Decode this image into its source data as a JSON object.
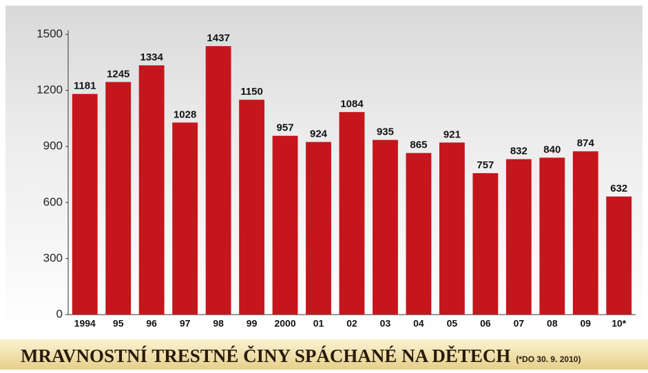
{
  "chart_data": {
    "type": "bar",
    "title": "MRAVNOSTNÍ TRESTNÉ ČINY SPÁCHANÉ NA DĚTECH",
    "note": "(*DO 30. 9. 2010)",
    "categories": [
      "1994",
      "95",
      "96",
      "97",
      "98",
      "99",
      "2000",
      "01",
      "02",
      "03",
      "04",
      "05",
      "06",
      "07",
      "08",
      "09",
      "10*"
    ],
    "values": [
      1181,
      1245,
      1334,
      1028,
      1437,
      1150,
      957,
      924,
      1084,
      935,
      865,
      921,
      757,
      832,
      840,
      874,
      632
    ],
    "color": "#c4161c",
    "ylim": [
      0,
      1500
    ],
    "yticks": [
      0,
      300,
      600,
      900,
      1200,
      1500
    ]
  }
}
